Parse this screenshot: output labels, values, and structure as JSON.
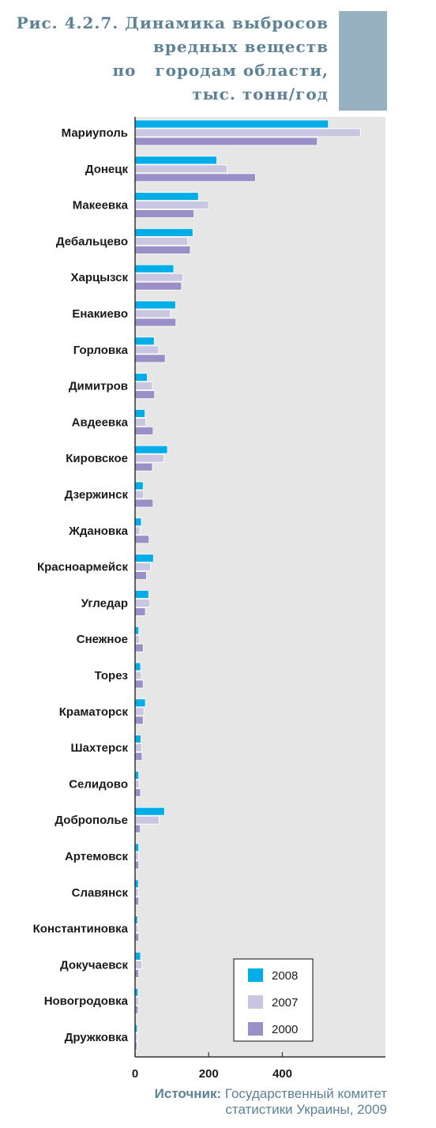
{
  "title": {
    "lines": [
      "Рис. 4.2.7. Динамика выбросов",
      "вредных веществ",
      "по   городам области,",
      "тыс. тонн/год"
    ]
  },
  "source": {
    "label": "Источник:",
    "line1": "Государственный комитет",
    "line2": "статистики Украины, 2009"
  },
  "colors": {
    "2008": "#00ade6",
    "2007": "#c8c6e0",
    "2000": "#9b8fc7",
    "plot_background": "#e6e6e6",
    "title": "#5d8296",
    "title_accent": "#98b1c1"
  },
  "chart_data": {
    "type": "bar",
    "orientation": "horizontal",
    "title": "Динамика выбросов вредных веществ по городам области, тыс. тонн/год",
    "xlabel": "",
    "ylabel": "",
    "xlim": [
      0,
      680
    ],
    "xticks": [
      0,
      200,
      400
    ],
    "grid": false,
    "legend_position": "bottom-right",
    "categories": [
      "Мариуполь",
      "Донецк",
      "Макеевка",
      "Дебальцево",
      "Харцызск",
      "Енакиево",
      "Горловка",
      "Димитров",
      "Авдеевка",
      "Кировское",
      "Дзержинск",
      "Ждановка",
      "Красноармейск",
      "Угледар",
      "Снежное",
      "Торез",
      "Краматорск",
      "Шахтерск",
      "Селидово",
      "Доброполье",
      "Артемовск",
      "Славянск",
      "Константиновка",
      "Докучаевск",
      "Новогродовка",
      "Дружковка"
    ],
    "series": [
      {
        "name": "2008",
        "values": [
          525,
          222,
          172,
          157,
          105,
          110,
          52,
          33,
          27,
          88,
          22,
          17,
          50,
          37,
          10,
          15,
          28,
          16,
          10,
          80,
          10,
          9,
          7,
          15,
          8,
          6
        ]
      },
      {
        "name": "2007",
        "values": [
          612,
          250,
          200,
          143,
          130,
          96,
          64,
          47,
          29,
          78,
          23,
          13,
          42,
          40,
          12,
          17,
          24,
          18,
          11,
          65,
          9,
          9,
          8,
          18,
          10,
          6
        ]
      },
      {
        "name": "2000",
        "values": [
          495,
          327,
          160,
          150,
          126,
          111,
          82,
          53,
          49,
          47,
          49,
          38,
          31,
          28,
          22,
          22,
          22,
          19,
          15,
          14,
          10,
          10,
          10,
          10,
          8,
          5
        ]
      }
    ]
  }
}
